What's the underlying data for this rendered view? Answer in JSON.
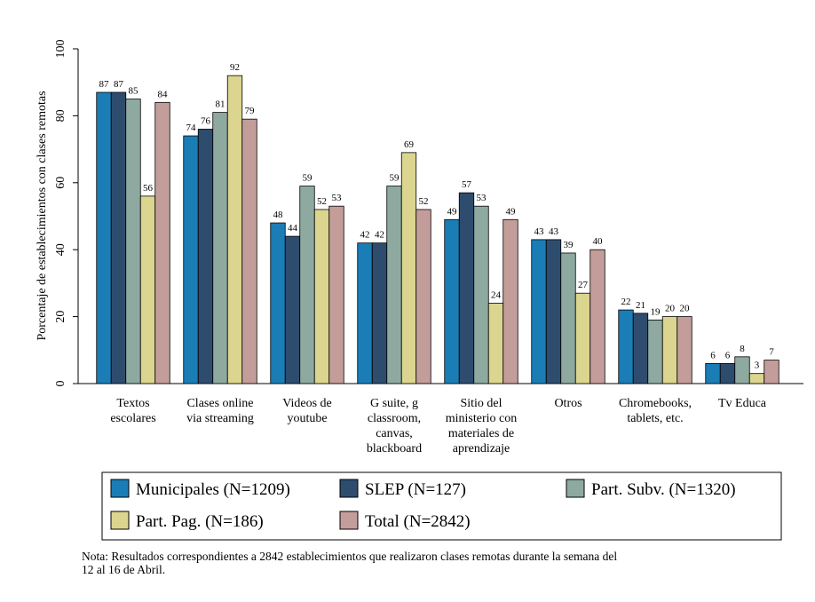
{
  "chart_data": {
    "type": "bar",
    "ylabel": "Porcentaje de establecimientos con clases remotas",
    "categories": [
      [
        "Textos",
        "escolares"
      ],
      [
        "Clases online",
        "via streaming"
      ],
      [
        "Videos de",
        "youtube"
      ],
      [
        "G suite, g",
        "classroom,",
        "canvas,",
        "blackboard"
      ],
      [
        "Sitio del",
        "ministerio con",
        "materiales de",
        "aprendizaje"
      ],
      [
        "Otros"
      ],
      [
        "Chromebooks,",
        "tablets, etc."
      ],
      [
        "Tv Educa"
      ]
    ],
    "series": [
      {
        "name": "Municipales (N=1209)",
        "color": "#1b7db5",
        "values": [
          87,
          74,
          48,
          42,
          49,
          43,
          22,
          6
        ]
      },
      {
        "name": "SLEP (N=127)",
        "color": "#2e4c6d",
        "values": [
          87,
          76,
          44,
          42,
          57,
          43,
          21,
          6
        ]
      },
      {
        "name": "Part. Subv. (N=1320)",
        "color": "#8ea9a0",
        "values": [
          85,
          81,
          59,
          59,
          53,
          39,
          19,
          8
        ]
      },
      {
        "name": "Part. Pag. (N=186)",
        "color": "#dbd58f",
        "values": [
          56,
          92,
          52,
          69,
          24,
          27,
          20,
          3
        ]
      },
      {
        "name": "Total (N=2842)",
        "color": "#c39d99",
        "values": [
          84,
          79,
          53,
          52,
          49,
          40,
          20,
          7
        ]
      }
    ],
    "ylim": [
      0,
      100
    ],
    "yticks": [
      0,
      20,
      40,
      60,
      80,
      100
    ],
    "grid": false,
    "note": [
      "Nota: Resultados correspondientes a 2842 establecimientos que realizaron clases remotas durante la semana del",
      "12 al 16 de Abril."
    ]
  }
}
